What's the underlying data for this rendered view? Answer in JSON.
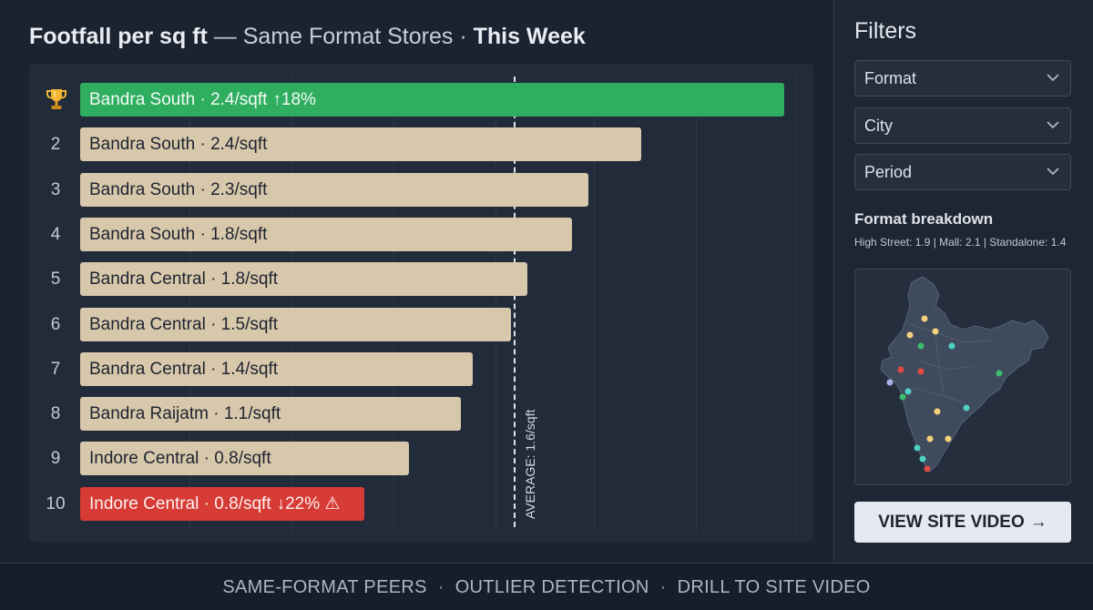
{
  "header": {
    "title_strong": "Footfall per sq ft",
    "title_sep": " — ",
    "title_light": "Same Format Stores",
    "title_dot": " · ",
    "title_period": "This Week"
  },
  "chart_data": {
    "type": "bar",
    "orientation": "horizontal",
    "unit": "/sqft",
    "average": 1.6,
    "average_label": "AVERAGE: 1.6/sqft",
    "grid": true,
    "ranks": [
      "2",
      "3",
      "4",
      "5",
      "6",
      "7",
      "8",
      "9",
      "10"
    ],
    "categories": [
      "Bandra South",
      "Bandra South",
      "Bandra South",
      "Bandra South",
      "Bandra Central",
      "Bandra Central",
      "Bandra Central",
      "Bandra Raijatm",
      "Indore Central",
      "Indore Central"
    ],
    "values": [
      2.4,
      2.4,
      2.3,
      1.8,
      1.8,
      1.5,
      1.4,
      1.1,
      0.8,
      0.8
    ],
    "bar_labels": [
      "Bandra South · 2.4/sqft",
      "Bandra South · 2.4/sqft",
      "Bandra South · 2.3/sqft",
      "Bandra South · 1.8/sqft",
      "Bandra Central · 1.8/sqft",
      "Bandra Central · 1.5/sqft",
      "Bandra Central · 1.4/sqft",
      "Bandra Raijatm · 1.1/sqft",
      "Indore Central · 0.8/sqft",
      "Indore Central · 0.8/sqft"
    ],
    "top_delta": "↑18%",
    "bottom_delta": "↓22% ⚠",
    "colors": {
      "top": "#2fae60",
      "default": "#d8c8ab",
      "bottom": "#d63b35"
    }
  },
  "sidebar": {
    "title": "Filters",
    "filters": [
      "Format",
      "City",
      "Period"
    ],
    "breakdown_title": "Format breakdown",
    "breakdown_text": "High Street: 1.9 | Mall: 2.1 | Standalone: 1.4",
    "map": {
      "icon": "india-map",
      "pin_colors": {
        "yellow": "#f2d27a",
        "teal": "#4fd1c5",
        "red": "#e04a44",
        "green": "#3dbb6e",
        "lavender": "#aab0e6"
      }
    },
    "cta_label": "VIEW SITE VIDEO",
    "cta_icon": "arrow-right-icon"
  },
  "footer": {
    "items": [
      "SAME-FORMAT PEERS",
      "OUTLIER DETECTION",
      "DRILL TO SITE VIDEO"
    ],
    "separator": "·"
  }
}
